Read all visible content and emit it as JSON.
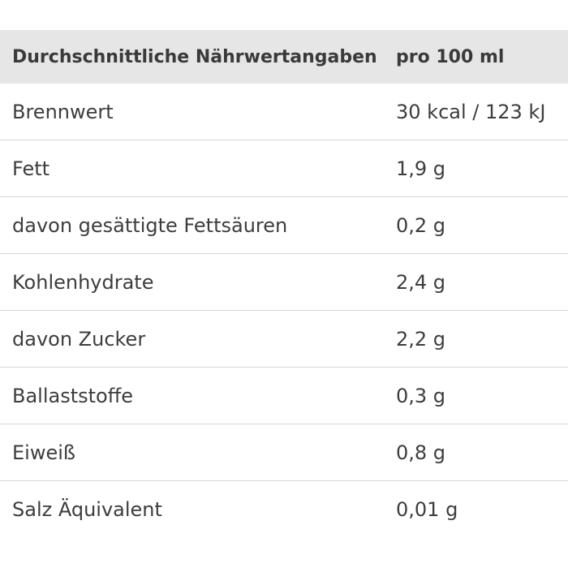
{
  "header": {
    "label": "Durchschnittliche Nährwertangaben",
    "unit": "pro 100 ml"
  },
  "rows": [
    {
      "name": "Brennwert",
      "value": "30 kcal / 123 kJ"
    },
    {
      "name": "Fett",
      "value": "1,9 g"
    },
    {
      "name": "davon gesättigte Fettsäuren",
      "value": "0,2 g"
    },
    {
      "name": "Kohlenhydrate",
      "value": "2,4 g"
    },
    {
      "name": "davon Zucker",
      "value": "2,2 g"
    },
    {
      "name": "Ballaststoffe",
      "value": "0,3 g"
    },
    {
      "name": "Eiweiß",
      "value": "0,8 g"
    },
    {
      "name": "Salz Äquivalent",
      "value": "0,01 g"
    }
  ],
  "colors": {
    "header_bg": "#e6e6e6",
    "text": "#3d3d3d",
    "divider": "#d6d6d6"
  }
}
